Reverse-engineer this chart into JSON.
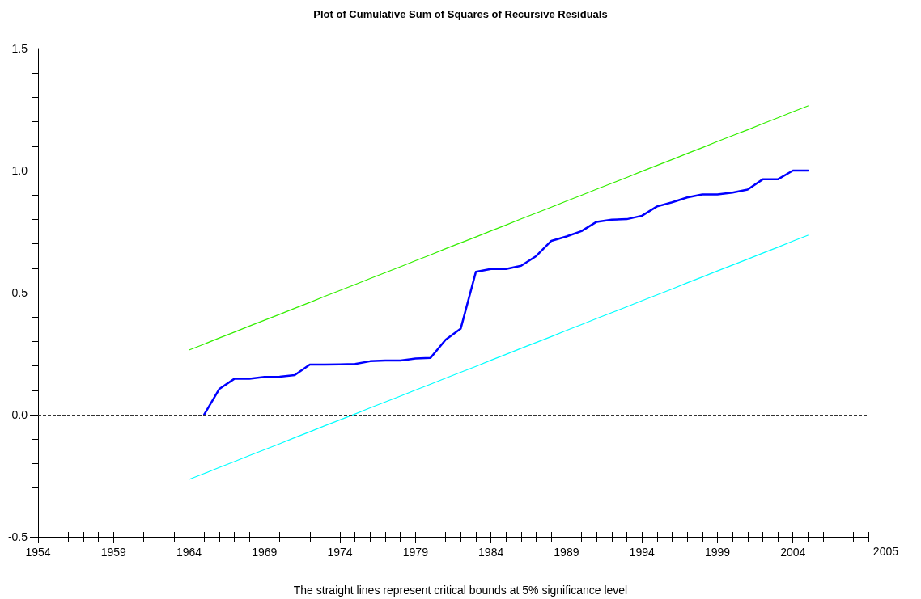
{
  "chart_data": {
    "type": "line",
    "title": "Plot of Cumulative Sum of Squares of Recursive Residuals",
    "xlabel": "2005",
    "annotations": [
      "The straight lines represent critical bounds at 5% significance level"
    ],
    "x": [
      1964,
      1965,
      1966,
      1967,
      1968,
      1969,
      1970,
      1971,
      1972,
      1973,
      1974,
      1975,
      1976,
      1977,
      1978,
      1979,
      1980,
      1981,
      1982,
      1983,
      1984,
      1985,
      1986,
      1987,
      1988,
      1989,
      1990,
      1991,
      1992,
      1993,
      1994,
      1995,
      1996,
      1997,
      1998,
      1999,
      2000,
      2001,
      2002,
      2003,
      2004,
      2005
    ],
    "series": [
      {
        "color": "#0000ff",
        "values": [
          null,
          0,
          0.105,
          0.147,
          0.147,
          0.155,
          0.156,
          0.162,
          0.205,
          0.205,
          0.206,
          0.208,
          0.219,
          0.222,
          0.222,
          0.23,
          0.233,
          0.307,
          0.353,
          0.585,
          0.597,
          0.597,
          0.61,
          0.65,
          0.712,
          0.73,
          0.752,
          0.79,
          0.799,
          0.801,
          0.815,
          0.853,
          0.87,
          0.89,
          0.902,
          0.902,
          0.91,
          0.922,
          0.964,
          0.964,
          1.0,
          1.0
        ]
      },
      {
        "color": "#33ee00",
        "values": [
          0.265,
          0.289,
          0.314,
          0.338,
          0.363,
          0.387,
          0.411,
          0.436,
          0.46,
          0.485,
          0.509,
          0.533,
          0.558,
          0.582,
          0.606,
          0.631,
          0.655,
          0.68,
          0.704,
          0.728,
          0.753,
          0.777,
          0.802,
          0.826,
          0.85,
          0.875,
          0.899,
          0.924,
          0.948,
          0.972,
          0.997,
          1.021,
          1.045,
          1.07,
          1.094,
          1.119,
          1.143,
          1.167,
          1.192,
          1.216,
          1.241,
          1.265
        ]
      },
      {
        "color": "#00ffff",
        "values": [
          -0.265,
          -0.241,
          -0.216,
          -0.192,
          -0.167,
          -0.143,
          -0.119,
          -0.094,
          -0.07,
          -0.045,
          -0.021,
          0.003,
          0.028,
          0.052,
          0.076,
          0.101,
          0.125,
          0.15,
          0.174,
          0.198,
          0.223,
          0.247,
          0.272,
          0.296,
          0.32,
          0.345,
          0.369,
          0.394,
          0.418,
          0.442,
          0.467,
          0.491,
          0.515,
          0.54,
          0.564,
          0.589,
          0.613,
          0.637,
          0.662,
          0.686,
          0.711,
          0.735
        ]
      }
    ],
    "xlim": [
      1954,
      2009
    ],
    "xticks": [
      1954,
      1959,
      1964,
      1969,
      1974,
      1979,
      1984,
      1989,
      1994,
      1999,
      2004
    ],
    "ylim": [
      -0.5,
      1.5
    ],
    "yticks": [
      -0.5,
      {
        "value": 0,
        "label": "0.0"
      },
      0.5,
      {
        "value": 1,
        "label": "1.0"
      },
      1.5
    ],
    "ref_lines": [
      {
        "axis": "y",
        "value": 0,
        "color": "#333333",
        "line_style": "dashed"
      }
    ],
    "grid": false,
    "marker": "none",
    "line_style": "solid"
  }
}
